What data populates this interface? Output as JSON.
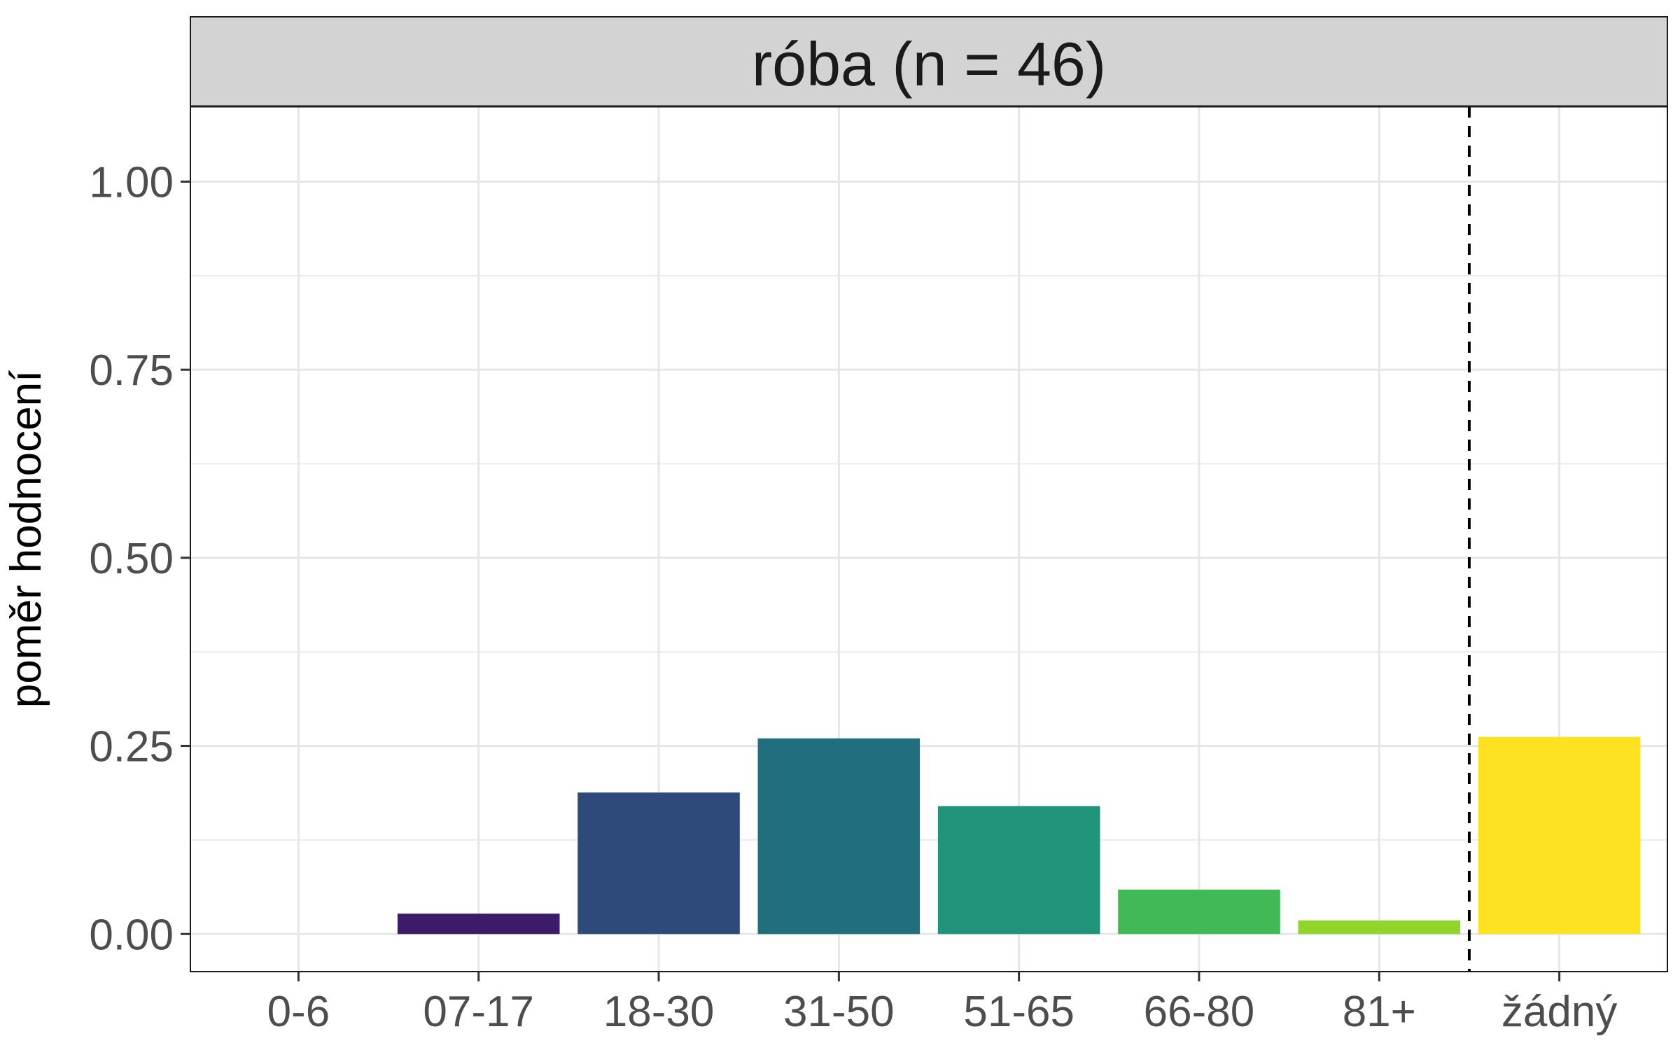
{
  "chart_data": {
    "type": "bar",
    "facet_label": "róba (n = 46)",
    "title": "",
    "xlabel": "",
    "ylabel": "poměr hodnocení",
    "categories": [
      "0-6",
      "07-17",
      "18-30",
      "31-50",
      "51-65",
      "66-80",
      "81+",
      "žádný"
    ],
    "values": [
      0.0,
      0.027,
      0.188,
      0.26,
      0.17,
      0.059,
      0.018,
      0.262
    ],
    "colors": [
      "#440154",
      "#3b1b6a",
      "#2d4a7b",
      "#206e7e",
      "#21937a",
      "#41b956",
      "#90d42c",
      "#fde221"
    ],
    "ylim": [
      -0.05,
      1.1
    ],
    "yticks": [
      0.0,
      0.25,
      0.5,
      0.75,
      1.0
    ],
    "ytick_labels": [
      "0.00",
      "0.25",
      "0.50",
      "0.75",
      "1.00"
    ],
    "separator_after_category": "81+",
    "separator_style": "dashed",
    "grid": true,
    "legend": "none"
  }
}
